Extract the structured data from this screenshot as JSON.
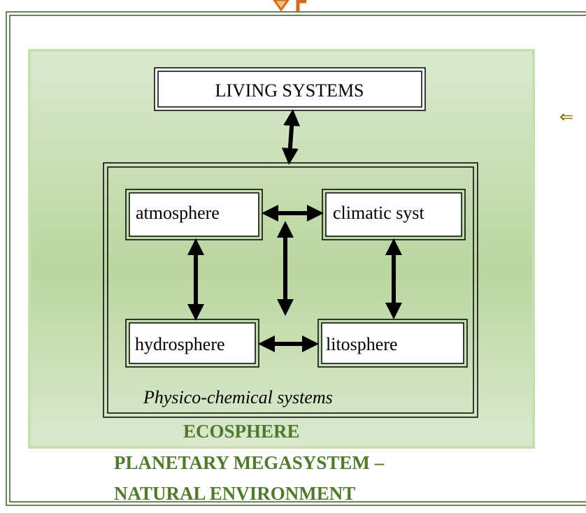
{
  "diagram": {
    "top_node": {
      "label": "LIVING SYSTEMS"
    },
    "nodes": [
      {
        "label": "atmosphere"
      },
      {
        "label": "climatic syst"
      },
      {
        "label": "hydrosphere"
      },
      {
        "label": "litosphere"
      }
    ],
    "group_caption": "Physico-chemical systems",
    "ecosphere_label": "ECOSPHERE",
    "megasystem_label": [
      "PLANETARY MEGASYSTEM –",
      "NATURAL ENVIRONMENT"
    ]
  }
}
